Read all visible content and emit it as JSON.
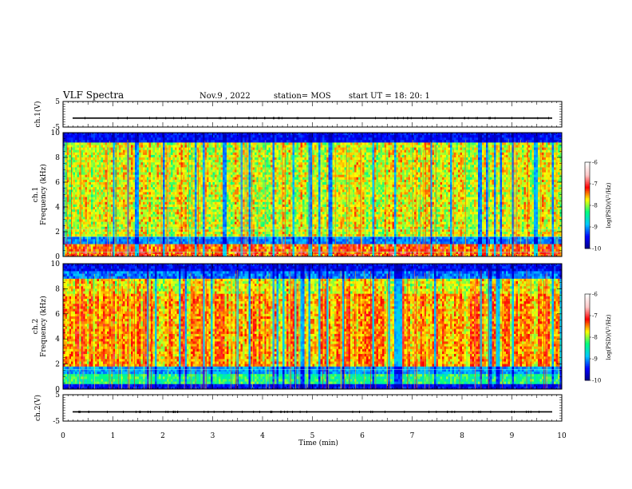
{
  "header": {
    "title": "VLF Spectra",
    "date": "Nov.9  , 2022",
    "station": "station= MOS",
    "start": "start  UT  =   18: 20: 1"
  },
  "chart_data": [
    {
      "type": "line",
      "name": "ch1-waveform",
      "ylabel": "ch.1(V)",
      "ylim": [
        -5,
        5
      ],
      "yticks": [
        "5",
        "-5"
      ],
      "xlim": [
        0,
        10
      ],
      "level": -1.5
    },
    {
      "type": "heatmap",
      "name": "ch1-spectrogram",
      "ylabel": "Frequency (kHz)",
      "ylabel_channel": "ch.1",
      "ylim": [
        0,
        10
      ],
      "yticks": [
        "0",
        "2",
        "4",
        "6",
        "8",
        "10"
      ],
      "xlim": [
        0,
        10
      ],
      "colorbar": {
        "label": "log(PSD)(V²/Hz)",
        "range": [
          -10,
          -6
        ],
        "ticks": [
          "-6",
          "-7",
          "-8",
          "-9",
          "-10"
        ]
      }
    },
    {
      "type": "heatmap",
      "name": "ch2-spectrogram",
      "ylabel": "Frequency (kHz)",
      "ylabel_channel": "ch.2",
      "ylim": [
        0,
        10
      ],
      "yticks": [
        "0",
        "2",
        "4",
        "6",
        "8",
        "10"
      ],
      "xlim": [
        0,
        10
      ],
      "colorbar": {
        "label": "log(PSD)(V²/Hz)",
        "range": [
          -10,
          -6
        ],
        "ticks": [
          "-6",
          "-7",
          "-8",
          "-9",
          "-10"
        ]
      }
    },
    {
      "type": "line",
      "name": "ch2-waveform",
      "ylabel": "ch.2(V)",
      "ylim": [
        -5,
        5
      ],
      "yticks": [
        "5",
        "-5"
      ],
      "xlim": [
        0,
        10
      ],
      "level": -1.5
    }
  ],
  "xaxis": {
    "label": "Time  (min)",
    "ticks": [
      "0",
      "1",
      "2",
      "3",
      "4",
      "5",
      "6",
      "7",
      "8",
      "9",
      "10"
    ]
  },
  "colors": {
    "colormap": [
      "#000080",
      "#0000ff",
      "#00c8ff",
      "#00ff80",
      "#ffff00",
      "#ff0000",
      "#ffc8c8",
      "#ffffff"
    ]
  }
}
